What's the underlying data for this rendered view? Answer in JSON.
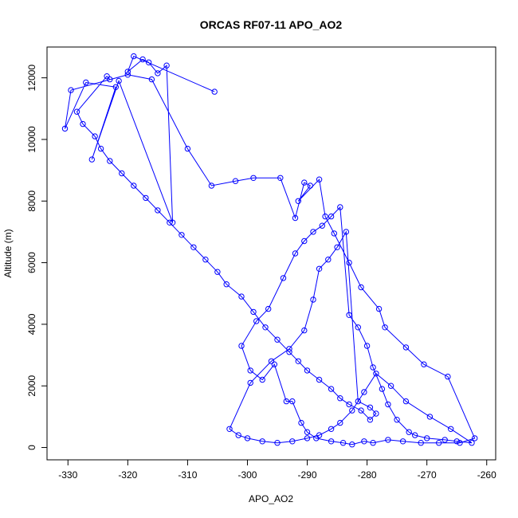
{
  "chart_data": {
    "type": "line",
    "title": "ORCAS RF07-11 APO_AO2",
    "xlabel": "APO_AO2",
    "ylabel": "Altitude (m)",
    "xlim": [
      -333.5,
      -258.5
    ],
    "ylim": [
      -400,
      13000
    ],
    "x_ticks": [
      -330,
      -320,
      -310,
      -300,
      -290,
      -280,
      -270,
      -260
    ],
    "y_ticks": [
      0,
      2000,
      4000,
      6000,
      8000,
      10000,
      12000
    ],
    "x_tick_labels": [
      "-330",
      "-320",
      "-310",
      "-300",
      "-290",
      "-280",
      "-270",
      "-260"
    ],
    "y_tick_labels": [
      "0",
      "2000",
      "4000",
      "6000",
      "8000",
      "10000",
      "12000"
    ],
    "markers": "open-circle",
    "line": true,
    "color": "#0000ff",
    "series": [
      {
        "x": [
          -305.5,
          -319.0,
          -320.0,
          -317.5,
          -316.5,
          -315.0,
          -313.5,
          -312.5,
          -321.5,
          -326.0,
          -322.0,
          -327.0,
          -330.5,
          -329.5,
          -320.0,
          -316.0,
          -310.0,
          -306.0,
          -302.0,
          -299.0,
          -294.5,
          -292.0,
          -290.5,
          -289.5,
          -291.5,
          -288.0,
          -287.0,
          -285.5,
          -283.0,
          -281.0,
          -278.0,
          -277.0,
          -273.5,
          -270.5,
          -266.5,
          -262.0,
          -264.5,
          -268.0,
          -271.0,
          -274.0,
          -276.5,
          -279.0,
          -280.5,
          -282.5,
          -284.0,
          -286.0,
          -288.5,
          -290.0,
          -291.0,
          -292.5,
          -293.5,
          -295.5,
          -297.5,
          -299.5,
          -301.0,
          -298.5,
          -296.5,
          -294.0,
          -292.0,
          -290.5,
          -289.0,
          -287.5,
          -286.0,
          -284.5,
          -283.0,
          -281.5,
          -280.0,
          -279.0,
          -277.5,
          -276.5,
          -275.0,
          -273.0,
          -272.0,
          -270.0,
          -267.0,
          -265.0,
          -262.5,
          -266.0,
          -269.5,
          -273.5,
          -276.0,
          -278.5,
          -280.5,
          -282.5,
          -284.5,
          -286.0,
          -288.0,
          -290.0,
          -292.5,
          -295.0,
          -297.5,
          -300.0,
          -301.5,
          -303.0,
          -299.5,
          -296.0,
          -293.0,
          -290.5,
          -289.0,
          -288.0,
          -286.5,
          -285.0,
          -283.5,
          -281.5,
          -279.5,
          -278.5,
          -279.5,
          -281.0,
          -283.0,
          -284.5,
          -286.0,
          -288.0,
          -290.0,
          -291.5,
          -293.0,
          -295.0,
          -297.0,
          -299.0,
          -301.0,
          -303.5,
          -305.0,
          -307.0,
          -309.0,
          -311.0,
          -313.0,
          -315.0,
          -317.0,
          -319.0,
          -321.0,
          -323.0,
          -324.5,
          -325.5,
          -327.5,
          -328.5,
          -323.5,
          -323.0
        ],
        "y": [
          11550,
          12700,
          12200,
          12600,
          12500,
          12150,
          12400,
          7300,
          11900,
          9350,
          11700,
          11850,
          10350,
          11600,
          12100,
          11950,
          9700,
          8500,
          8650,
          8750,
          8750,
          7450,
          8600,
          8500,
          8000,
          8700,
          7500,
          6950,
          6000,
          5200,
          4500,
          3900,
          3250,
          2700,
          2300,
          300,
          150,
          150,
          150,
          200,
          250,
          150,
          200,
          100,
          150,
          200,
          300,
          500,
          800,
          1500,
          1500,
          2700,
          2200,
          2500,
          3300,
          4100,
          4500,
          5500,
          6300,
          6700,
          7000,
          7200,
          7500,
          7800,
          4300,
          3900,
          3300,
          2600,
          1900,
          1400,
          900,
          500,
          400,
          300,
          250,
          200,
          150,
          600,
          1000,
          1500,
          2000,
          2400,
          1800,
          1200,
          800,
          600,
          400,
          300,
          200,
          150,
          200,
          300,
          400,
          600,
          2100,
          2800,
          3200,
          3800,
          4800,
          5800,
          6100,
          6500,
          7000,
          1500,
          1300,
          1100,
          900,
          1200,
          1400,
          1600,
          1900,
          2200,
          2500,
          2800,
          3100,
          3500,
          3900,
          4400,
          4900,
          5300,
          5700,
          6100,
          6500,
          6900,
          7300,
          7700,
          8100,
          8500,
          8900,
          9300,
          9700,
          10100,
          10500,
          10900,
          12050,
          11950
        ]
      }
    ]
  }
}
